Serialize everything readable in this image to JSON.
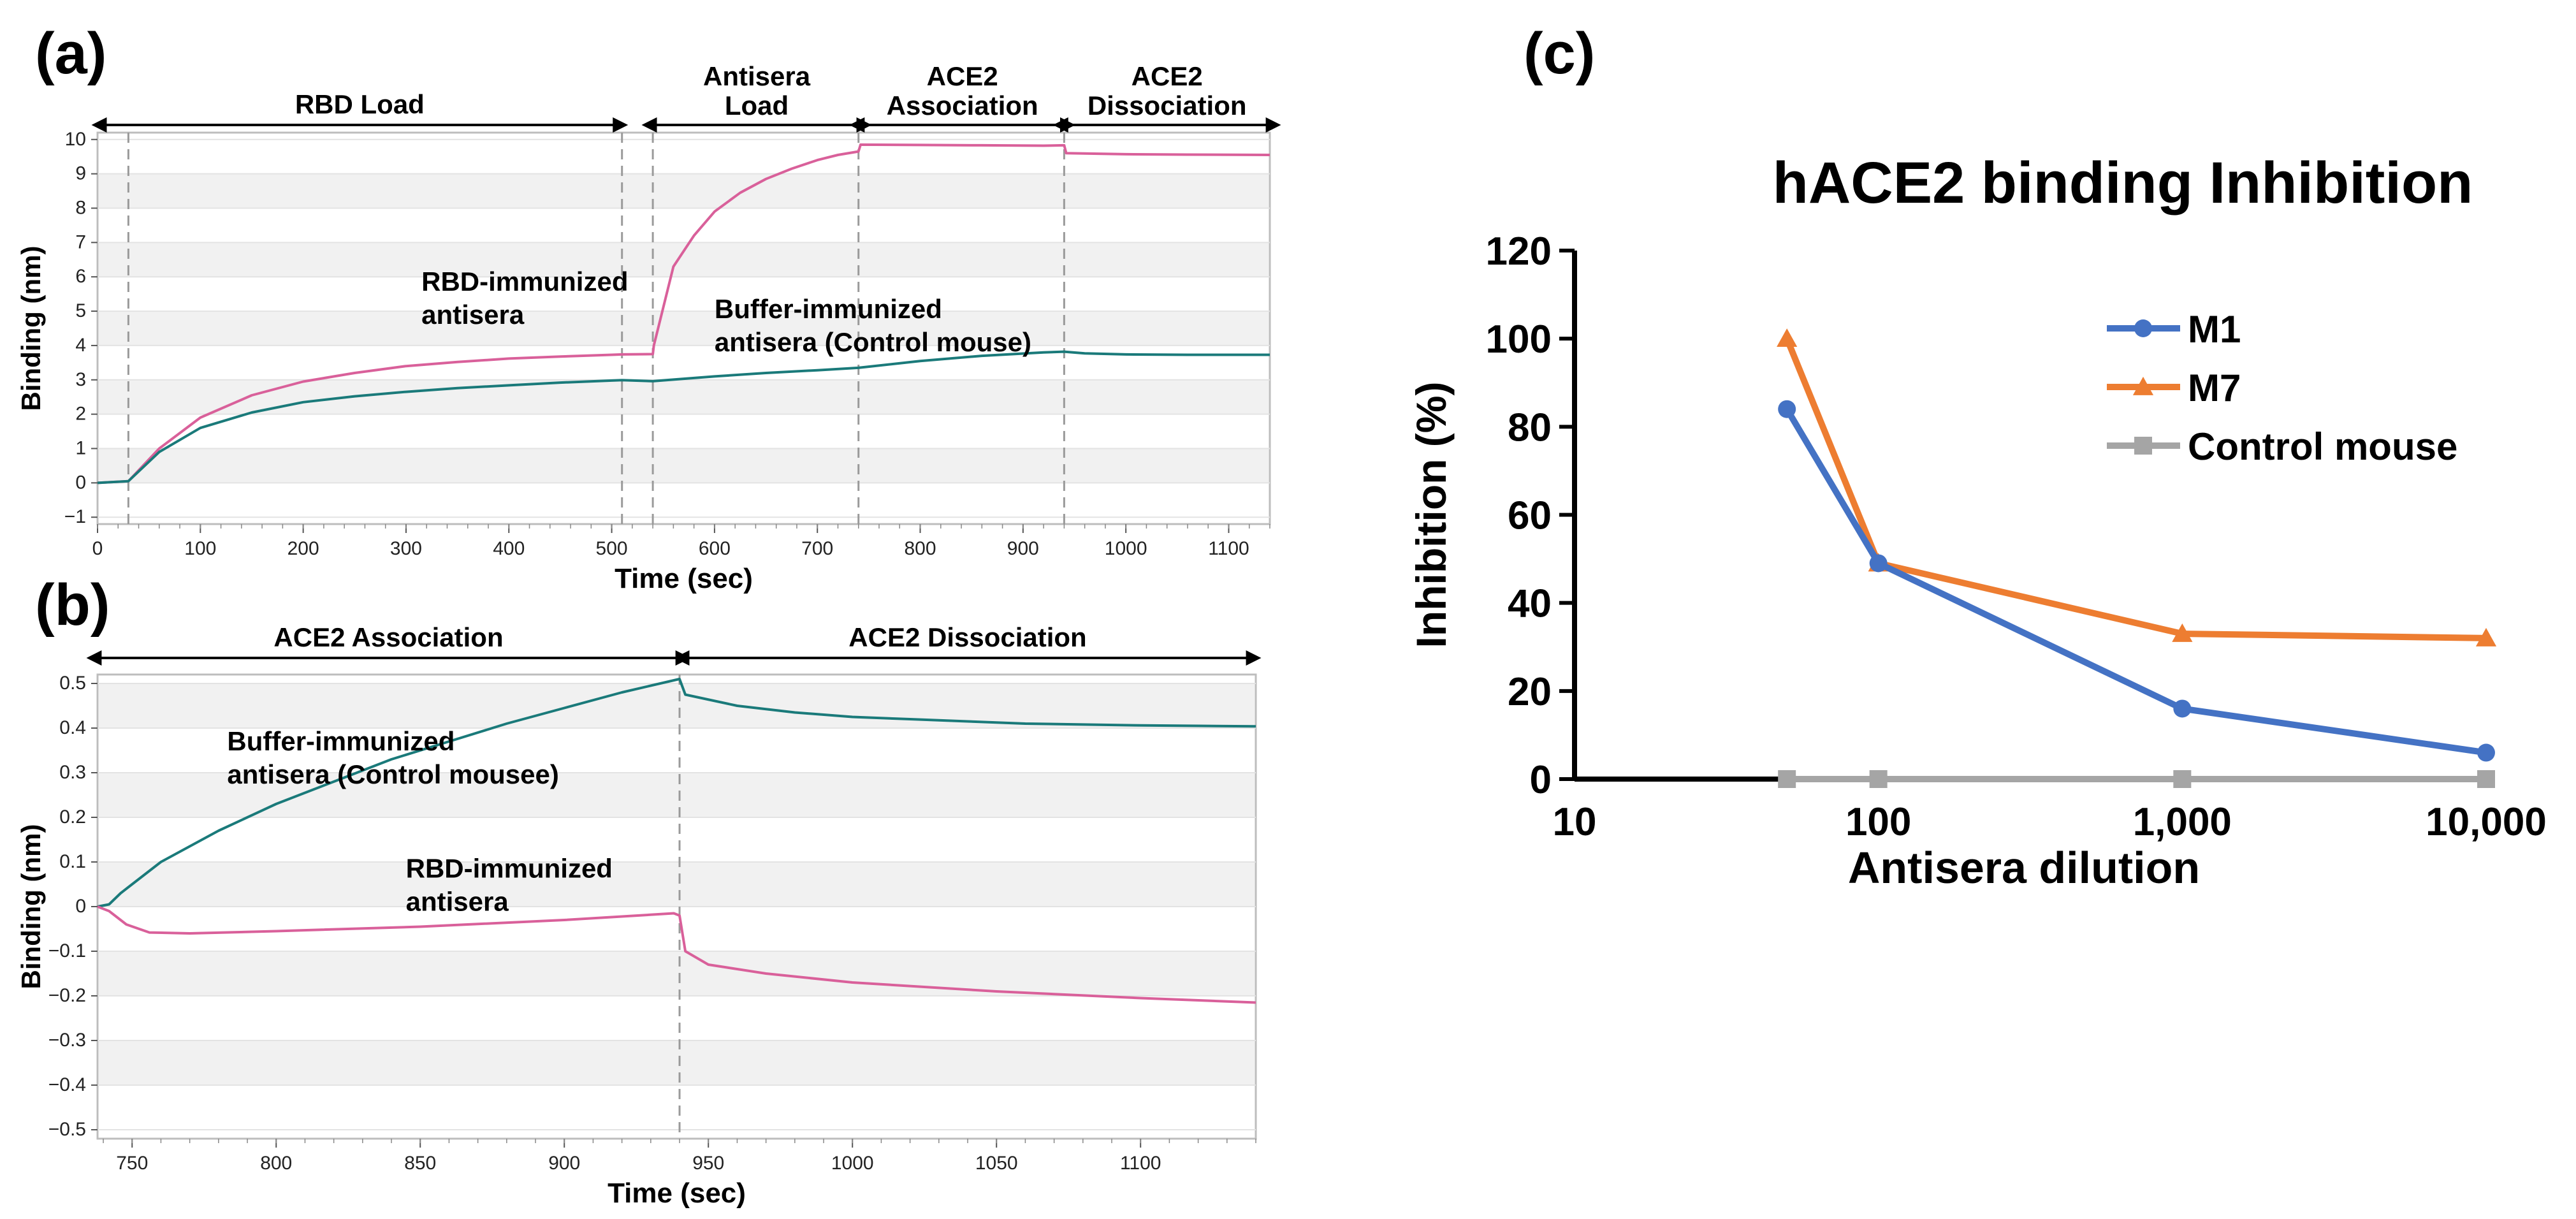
{
  "panel_labels": {
    "a": "(a)",
    "b": "(b)",
    "c": "(c)"
  },
  "colors": {
    "pink": "#d9609a",
    "teal": "#1a7a7a",
    "blue": "#4472c4",
    "orange": "#ed7d31",
    "gray": "#a5a5a5"
  },
  "chart_data": [
    {
      "panel": "a",
      "type": "line",
      "xlabel": "Time (sec)",
      "ylabel": "Binding (nm)",
      "xlim": [
        0,
        1140
      ],
      "ylim": [
        -1.2,
        10.2
      ],
      "xticks": [
        0,
        100,
        200,
        300,
        400,
        500,
        600,
        700,
        800,
        900,
        1000,
        1100
      ],
      "yticks": [
        -1,
        0,
        1,
        2,
        3,
        4,
        5,
        6,
        7,
        8,
        9,
        10
      ],
      "step_dividers": [
        30,
        510,
        540,
        740,
        940
      ],
      "steps": [
        {
          "label": "RBD Load",
          "start": 5,
          "end": 505
        },
        {
          "label": "Antisera Load",
          "start": 540,
          "end": 742
        },
        {
          "label": "ACE2 Association",
          "start": 742,
          "end": 940
        },
        {
          "label": "ACE2 Dissociation",
          "start": 940,
          "end": 1140
        }
      ],
      "annotations": [
        {
          "text": [
            "RBD-immunized",
            "antisera"
          ],
          "x": 315,
          "y": 5.6
        },
        {
          "text": [
            "Buffer-immunized",
            "antisera (Control mouse)"
          ],
          "x": 600,
          "y": 4.8
        }
      ],
      "series": [
        {
          "name": "RBD-immunized antisera",
          "color": "pink",
          "x": [
            0,
            30,
            60,
            100,
            150,
            200,
            250,
            300,
            350,
            400,
            450,
            500,
            510,
            540,
            541,
            560,
            580,
            600,
            625,
            650,
            675,
            700,
            720,
            740,
            742,
            800,
            860,
            920,
            940,
            942,
            1000,
            1060,
            1140
          ],
          "y": [
            0,
            0.05,
            1.0,
            1.9,
            2.55,
            2.95,
            3.2,
            3.4,
            3.52,
            3.62,
            3.68,
            3.73,
            3.74,
            3.75,
            4.0,
            6.3,
            7.2,
            7.9,
            8.45,
            8.85,
            9.15,
            9.4,
            9.55,
            9.65,
            9.85,
            9.84,
            9.83,
            9.82,
            9.83,
            9.6,
            9.57,
            9.56,
            9.55
          ]
        },
        {
          "name": "Buffer-immunized antisera (Control mouse)",
          "color": "teal",
          "x": [
            0,
            30,
            60,
            100,
            150,
            200,
            250,
            300,
            350,
            400,
            450,
            500,
            510,
            540,
            600,
            650,
            700,
            740,
            800,
            860,
            920,
            940,
            960,
            1000,
            1060,
            1140
          ],
          "y": [
            0,
            0.05,
            0.9,
            1.6,
            2.05,
            2.35,
            2.52,
            2.65,
            2.76,
            2.84,
            2.92,
            2.98,
            2.99,
            2.96,
            3.1,
            3.2,
            3.28,
            3.35,
            3.55,
            3.7,
            3.8,
            3.82,
            3.77,
            3.74,
            3.73,
            3.73
          ]
        }
      ]
    },
    {
      "panel": "b",
      "type": "line",
      "xlabel": "Time (sec)",
      "ylabel": "Binding (nm)",
      "xlim": [
        738,
        1140
      ],
      "ylim": [
        -0.52,
        0.52
      ],
      "xticks": [
        750,
        800,
        850,
        900,
        950,
        1000,
        1050,
        1100
      ],
      "yticks": [
        -0.5,
        -0.4,
        -0.3,
        -0.2,
        -0.1,
        0,
        0.1,
        0.2,
        0.3,
        0.4,
        0.5
      ],
      "step_dividers": [
        940
      ],
      "steps": [
        {
          "label": "ACE2 Association",
          "start": 738,
          "end": 940
        },
        {
          "label": "ACE2 Dissociation",
          "start": 942,
          "end": 1138
        }
      ],
      "annotations": [
        {
          "text": [
            "Buffer-immunized",
            "antisera (Control mousee)"
          ],
          "x": 783,
          "y": 0.35
        },
        {
          "text": [
            "RBD-immunized",
            "antisera"
          ],
          "x": 845,
          "y": 0.065
        }
      ],
      "series": [
        {
          "name": "Buffer-immunized antisera (Control mousee)",
          "color": "teal",
          "x": [
            738,
            742,
            746,
            750,
            760,
            780,
            800,
            820,
            840,
            860,
            880,
            900,
            920,
            940,
            942,
            960,
            980,
            1000,
            1020,
            1040,
            1060,
            1080,
            1100,
            1120,
            1140
          ],
          "y": [
            0.0,
            0.005,
            0.03,
            0.05,
            0.1,
            0.17,
            0.23,
            0.28,
            0.33,
            0.37,
            0.41,
            0.445,
            0.48,
            0.51,
            0.475,
            0.45,
            0.435,
            0.425,
            0.42,
            0.415,
            0.41,
            0.408,
            0.406,
            0.405,
            0.404
          ]
        },
        {
          "name": "RBD-immunized antisera",
          "color": "pink",
          "x": [
            738,
            742,
            748,
            756,
            770,
            800,
            850,
            900,
            938,
            940,
            942,
            950,
            970,
            1000,
            1050,
            1100,
            1140
          ],
          "y": [
            0.0,
            -0.01,
            -0.04,
            -0.058,
            -0.06,
            -0.055,
            -0.045,
            -0.03,
            -0.015,
            -0.02,
            -0.1,
            -0.13,
            -0.15,
            -0.17,
            -0.19,
            -0.205,
            -0.215
          ]
        }
      ]
    },
    {
      "panel": "c",
      "type": "line",
      "title": "hACE2 binding Inhibition",
      "xlabel": "Antisera dilution",
      "ylabel": "Inhibition (%)",
      "xscale": "log",
      "xlim": [
        10,
        10000
      ],
      "ylim": [
        0,
        120
      ],
      "xticks": [
        10,
        100,
        1000,
        10000
      ],
      "xtick_labels": [
        "10",
        "100",
        "1,000",
        "10,000"
      ],
      "yticks": [
        0,
        20,
        40,
        60,
        80,
        100,
        120
      ],
      "legend_position": "top-right",
      "series": [
        {
          "name": "M1",
          "color": "blue",
          "marker": "circle",
          "x": [
            50,
            100,
            1000,
            10000
          ],
          "y": [
            84,
            49,
            16,
            6
          ]
        },
        {
          "name": "M7",
          "color": "orange",
          "marker": "triangle",
          "x": [
            50,
            100,
            1000,
            10000
          ],
          "y": [
            100,
            49,
            33,
            32
          ]
        },
        {
          "name": "Control mouse",
          "color": "gray",
          "marker": "square",
          "x": [
            50,
            100,
            1000,
            10000
          ],
          "y": [
            0,
            0,
            0,
            0
          ]
        }
      ]
    }
  ]
}
